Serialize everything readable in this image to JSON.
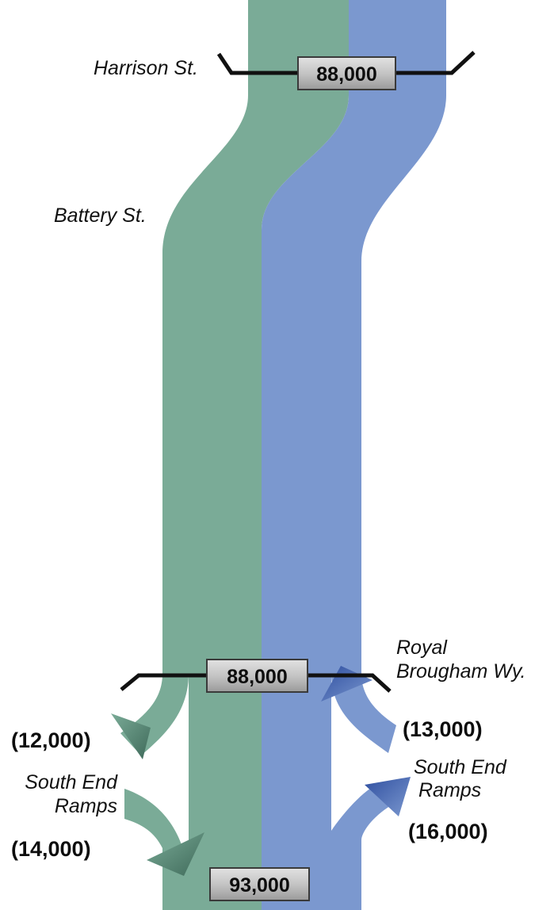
{
  "colors": {
    "southbound_flow": "#7aab97",
    "northbound_flow": "#7b98cf",
    "screenline": "#111111",
    "volume_box_fill": "#c7c7c7",
    "volume_box_border": "#3a3a3a"
  },
  "streets": {
    "harrison": "Harrison St.",
    "battery": "Battery St.",
    "royal_brougham_line1": "Royal",
    "royal_brougham_line2": "Brougham Wy.",
    "south_end_left_line1": "South End",
    "south_end_left_line2": "Ramps",
    "south_end_right_line1": "South End",
    "south_end_right_line2": "Ramps"
  },
  "volumes": {
    "harrison": "88,000",
    "royal_brougham": "88,000",
    "south": "93,000",
    "royal_brougham_off_left": "(12,000)",
    "royal_brougham_on_right": "(13,000)",
    "south_end_on_left": "(14,000)",
    "south_end_off_right": "(16,000)"
  }
}
